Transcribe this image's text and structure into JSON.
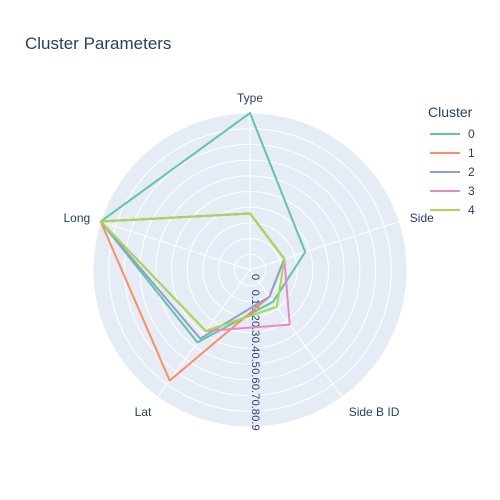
{
  "chart_data": {
    "type": "radar",
    "title": "Cluster Parameters",
    "axes": [
      "Type",
      "Side A ID",
      "Side B ID",
      "Lat",
      "Long"
    ],
    "axis_label_display": [
      "Type",
      "Side",
      "Side B ID",
      "Lat",
      "Long"
    ],
    "radial_range": [
      0,
      1
    ],
    "radial_ticks": [
      "0",
      "0.1",
      "0.2",
      "0.3",
      "0.4",
      "0.5",
      "0.6",
      "0.7",
      "0.8",
      "0.9"
    ],
    "legend_title": "Cluster",
    "legend_position": "top-right",
    "series": [
      {
        "name": "0",
        "color": "#66c2a5",
        "values": [
          1.0,
          0.37,
          0.25,
          0.57,
          1.0
        ]
      },
      {
        "name": "1",
        "color": "#fc8d62",
        "values": [
          0.36,
          0.23,
          0.21,
          0.87,
          1.0
        ]
      },
      {
        "name": "2",
        "color": "#8da0cb",
        "values": [
          0.36,
          0.23,
          0.21,
          0.54,
          1.0
        ]
      },
      {
        "name": "3",
        "color": "#e78ac3",
        "values": [
          0.36,
          0.23,
          0.43,
          0.48,
          1.0
        ]
      },
      {
        "name": "4",
        "color": "#a6d854",
        "values": [
          0.36,
          0.23,
          0.29,
          0.48,
          1.0
        ]
      }
    ]
  }
}
